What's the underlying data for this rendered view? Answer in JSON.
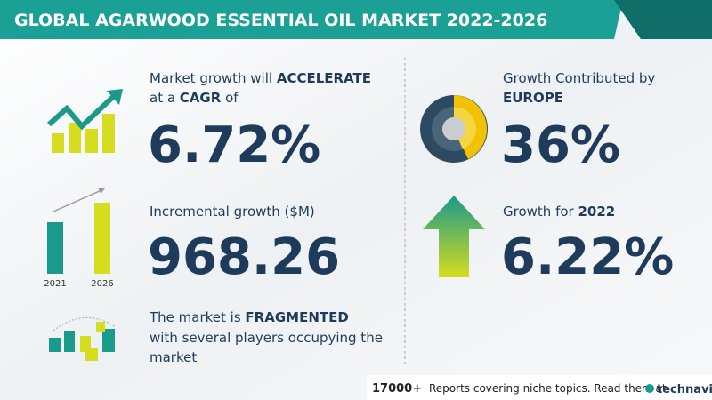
{
  "header": {
    "title": "GLOBAL AGARWOOD ESSENTIAL OIL MARKET 2022-2026"
  },
  "growth": {
    "line1": "Market growth will ",
    "line1_bold": "ACCELERATE",
    "line2": "at a ",
    "line2_bold": "CAGR",
    "line2_end": " of",
    "value": "6.72%"
  },
  "incremental": {
    "label": "Incremental growth ($M)",
    "value": "968.26",
    "years": [
      "2021",
      "2026"
    ]
  },
  "market": {
    "line1": "The market is ",
    "line1_bold": "FRAGMENTED",
    "line2": "with several players occupying the",
    "line3": "market"
  },
  "region": {
    "label": "Growth Contributed by",
    "region": "EUROPE",
    "value": "36%"
  },
  "year_growth": {
    "label": "Growth for ",
    "year": "2022",
    "value": "6.22%"
  },
  "footer": {
    "count": "17000+",
    "text": "Reports covering niche topics. Read them at",
    "brand": "technavio"
  }
}
